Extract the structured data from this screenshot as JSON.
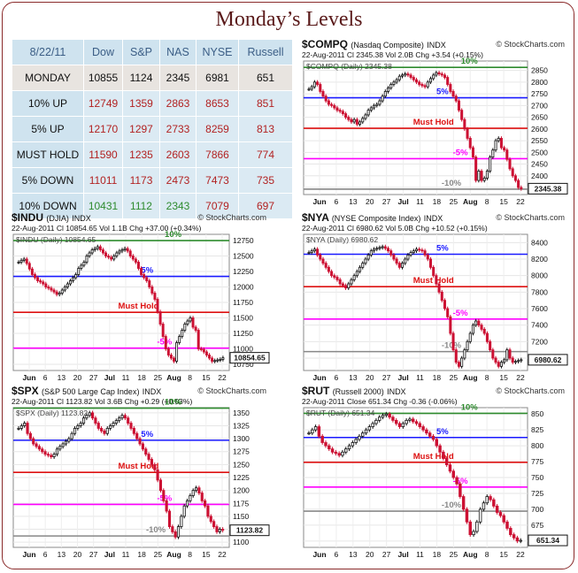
{
  "title": "Monday’s Levels",
  "table": {
    "headers": [
      "8/22/11",
      "Dow",
      "S&P",
      "NAS",
      "NYSE",
      "Russell"
    ],
    "rows": [
      {
        "label": "MONDAY",
        "values": [
          "10855",
          "1124",
          "2345",
          "6981",
          "651"
        ],
        "color": "#111111"
      },
      {
        "label": "10% UP",
        "values": [
          "12749",
          "1359",
          "2863",
          "8653",
          "851"
        ],
        "color": "#b22222"
      },
      {
        "label": "5% UP",
        "values": [
          "12170",
          "1297",
          "2733",
          "8259",
          "813"
        ],
        "color": "#b22222"
      },
      {
        "label": "MUST HOLD",
        "values": [
          "11590",
          "1235",
          "2603",
          "7866",
          "774"
        ],
        "color": "#b22222"
      },
      {
        "label": "5% DOWN",
        "values": [
          "11011",
          "1173",
          "2473",
          "7473",
          "735"
        ],
        "color": "#b22222"
      },
      {
        "label": "10% DOWN",
        "values": [
          "10431",
          "1112",
          "2343",
          "7079",
          "697"
        ],
        "colors": [
          "#2e8b2e",
          "#2e8b2e",
          "#2e8b2e",
          "#b22222",
          "#b22222"
        ]
      }
    ]
  },
  "chart_data": [
    {
      "id": "compq",
      "type": "bar",
      "symbol": "$COMPQ",
      "description": "(Nasdaq Composite)",
      "exchange": "INDX",
      "source": "© StockCharts.com",
      "stats": "22-Aug-2011   Cl 2345.38  Vol 2.0B  Chg +3.54 (+0.15%)",
      "overlay": "$COMPQ (Daily) 2345.38",
      "last_label": "2345.38",
      "ylim": [
        2320,
        2890
      ],
      "yticks": [
        2350,
        2400,
        2450,
        2500,
        2550,
        2600,
        2650,
        2700,
        2750,
        2800,
        2850
      ],
      "xticks": [
        "Jun",
        "6",
        "13",
        "20",
        "27",
        "Jul",
        "11",
        "18",
        "25",
        "Aug",
        "8",
        "15",
        "22"
      ],
      "levels": [
        {
          "label": "10%",
          "value": 2863,
          "color": "#2e8b2e"
        },
        {
          "label": "5%",
          "value": 2733,
          "color": "#1a1aff"
        },
        {
          "label": "Must Hold",
          "value": 2603,
          "color": "#dd1111"
        },
        {
          "label": "-5%",
          "value": 2473,
          "color": "#ff00ff"
        },
        {
          "label": "-10%",
          "value": 2343,
          "color": "#888888"
        }
      ],
      "closes": [
        2770,
        2780,
        2800,
        2790,
        2760,
        2740,
        2720,
        2705,
        2700,
        2690,
        2680,
        2675,
        2665,
        2650,
        2640,
        2630,
        2640,
        2620,
        2630,
        2645,
        2660,
        2680,
        2690,
        2700,
        2705,
        2720,
        2740,
        2760,
        2775,
        2790,
        2800,
        2810,
        2825,
        2830,
        2835,
        2830,
        2820,
        2810,
        2800,
        2790,
        2785,
        2780,
        2800,
        2815,
        2830,
        2840,
        2835,
        2830,
        2820,
        2790,
        2760,
        2740,
        2720,
        2680,
        2640,
        2600,
        2560,
        2520,
        2480,
        2380,
        2420,
        2380,
        2390,
        2420,
        2480,
        2510,
        2550,
        2560,
        2520,
        2510,
        2470,
        2430,
        2400,
        2380,
        2350,
        2345
      ]
    },
    {
      "id": "indu",
      "type": "bar",
      "symbol": "$INDU",
      "description": "(DJIA)",
      "exchange": "INDX",
      "source": "© StockCharts.com",
      "stats": "22-Aug-2011   Cl 10854.65  Vol 1.1B  Chg +37.00 (+0.34%)",
      "overlay": "$INDU (Daily) 10854.65",
      "last_label": "10854.65",
      "ylim": [
        10650,
        12850
      ],
      "yticks": [
        10750,
        11000,
        11250,
        11500,
        11750,
        12000,
        12250,
        12500,
        12750
      ],
      "xticks": [
        "Jun",
        "6",
        "13",
        "20",
        "27",
        "Jul",
        "11",
        "18",
        "25",
        "Aug",
        "8",
        "15",
        "22"
      ],
      "levels": [
        {
          "label": "10%",
          "value": 12749,
          "color": "#2e8b2e"
        },
        {
          "label": "5%",
          "value": 12170,
          "color": "#1a1aff"
        },
        {
          "label": "Must Hold",
          "value": 11590,
          "color": "#dd1111"
        },
        {
          "label": "-5%",
          "value": 11011,
          "color": "#ff00ff"
        },
        {
          "label": "-10%",
          "value": 10431,
          "color": "#888888"
        }
      ],
      "closes": [
        12400,
        12430,
        12450,
        12380,
        12290,
        12200,
        12150,
        12100,
        12080,
        12050,
        12000,
        11980,
        11950,
        11920,
        11880,
        11900,
        11950,
        12000,
        12050,
        12100,
        12150,
        12200,
        12300,
        12350,
        12400,
        12500,
        12550,
        12600,
        12620,
        12650,
        12600,
        12550,
        12500,
        12480,
        12450,
        12500,
        12550,
        12580,
        12600,
        12620,
        12580,
        12500,
        12450,
        12400,
        12300,
        12200,
        12150,
        12100,
        12000,
        11900,
        11800,
        11600,
        11400,
        11200,
        11000,
        10900,
        10850,
        10800,
        11100,
        11200,
        11300,
        11400,
        11450,
        11500,
        11350,
        11300,
        11000,
        10990,
        10950,
        10900,
        10850,
        10800,
        10810,
        10820,
        10830,
        10855
      ]
    },
    {
      "id": "nya",
      "type": "bar",
      "symbol": "$NYA",
      "description": "(NYSE Composite Index)",
      "exchange": "INDX",
      "source": "© StockCharts.com",
      "stats": "22-Aug-2011   Cl 6980.62  Vol 5.0B  Chg +10.52 (+0.15%)",
      "overlay": "$NYA (Daily) 6980.62",
      "last_label": "6980.62",
      "ylim": [
        6850,
        8500
      ],
      "yticks": [
        7000,
        7200,
        7400,
        7600,
        7800,
        8000,
        8200,
        8400
      ],
      "xticks": [
        "Jun",
        "6",
        "13",
        "20",
        "27",
        "Jul",
        "11",
        "18",
        "25",
        "Aug",
        "8",
        "15",
        "22"
      ],
      "levels": [
        {
          "label": "5%",
          "value": 8259,
          "color": "#1a1aff"
        },
        {
          "label": "Must Hold",
          "value": 7866,
          "color": "#dd1111"
        },
        {
          "label": "-5%",
          "value": 7473,
          "color": "#ff00ff"
        },
        {
          "label": "-10%",
          "value": 7079,
          "color": "#888888"
        }
      ],
      "closes": [
        8280,
        8300,
        8320,
        8250,
        8200,
        8150,
        8100,
        8050,
        8000,
        7980,
        7950,
        7900,
        7880,
        7850,
        7900,
        7950,
        8000,
        8050,
        8100,
        8150,
        8200,
        8250,
        8300,
        8320,
        8330,
        8340,
        8350,
        8330,
        8300,
        8250,
        8200,
        8150,
        8100,
        8150,
        8200,
        8250,
        8280,
        8300,
        8320,
        8310,
        8300,
        8250,
        8200,
        8100,
        8000,
        7900,
        7800,
        7700,
        7600,
        7500,
        7300,
        7100,
        6950,
        6900,
        7000,
        7100,
        7200,
        7300,
        7400,
        7450,
        7400,
        7350,
        7300,
        7200,
        7100,
        7000,
        6950,
        6900,
        6950,
        6980,
        7100,
        7000,
        6950,
        6960,
        6970,
        6980
      ]
    },
    {
      "id": "spx",
      "type": "bar",
      "symbol": "$SPX",
      "description": "(S&P 500 Large Cap Index)",
      "exchange": "INDX",
      "source": "© StockCharts.com",
      "stats": "22-Aug-2011   Cl 1123.82  Vol 3.6B  Chg +0.29 (+0.03%)",
      "overlay": "$SPX (Daily) 1123.82",
      "last_label": "1123.82",
      "ylim": [
        1090,
        1360
      ],
      "yticks": [
        1100,
        1125,
        1150,
        1175,
        1200,
        1225,
        1250,
        1275,
        1300,
        1325,
        1350
      ],
      "xticks": [
        "Jun",
        "6",
        "13",
        "20",
        "27",
        "Jul",
        "11",
        "18",
        "25",
        "Aug",
        "8",
        "15",
        "22"
      ],
      "levels": [
        {
          "label": "10%",
          "value": 1359,
          "color": "#2e8b2e"
        },
        {
          "label": "5%",
          "value": 1297,
          "color": "#1a1aff"
        },
        {
          "label": "Must Hold",
          "value": 1235,
          "color": "#dd1111"
        },
        {
          "label": "-5%",
          "value": 1173,
          "color": "#ff00ff"
        },
        {
          "label": "-10%",
          "value": 1112,
          "color": "#888888"
        }
      ],
      "closes": [
        1320,
        1325,
        1330,
        1310,
        1300,
        1290,
        1285,
        1280,
        1275,
        1270,
        1268,
        1265,
        1270,
        1280,
        1285,
        1290,
        1295,
        1300,
        1310,
        1320,
        1325,
        1330,
        1340,
        1345,
        1350,
        1340,
        1330,
        1320,
        1315,
        1310,
        1320,
        1325,
        1330,
        1335,
        1340,
        1345,
        1340,
        1330,
        1320,
        1310,
        1300,
        1290,
        1280,
        1270,
        1260,
        1250,
        1240,
        1220,
        1200,
        1180,
        1160,
        1130,
        1120,
        1110,
        1130,
        1150,
        1170,
        1180,
        1190,
        1200,
        1205,
        1195,
        1180,
        1170,
        1150,
        1140,
        1130,
        1120,
        1125,
        1123
      ]
    },
    {
      "id": "rut",
      "type": "bar",
      "symbol": "$RUT",
      "description": "(Russell 2000)",
      "exchange": "INDX",
      "source": "© StockCharts.com",
      "stats": "22-Aug-2011      Close 651.34  Chg -0.36 (-0.06%)",
      "overlay": "$RUT (Daily) 651.34",
      "last_label": "651.34",
      "ylim": [
        640,
        860
      ],
      "yticks": [
        650,
        675,
        700,
        725,
        750,
        775,
        800,
        825,
        850
      ],
      "xticks": [
        "Jun",
        "6",
        "13",
        "20",
        "27",
        "Jul",
        "11",
        "18",
        "25",
        "Aug",
        "8",
        "15",
        "22"
      ],
      "levels": [
        {
          "label": "10%",
          "value": 851,
          "color": "#2e8b2e"
        },
        {
          "label": "5%",
          "value": 813,
          "color": "#1a1aff"
        },
        {
          "label": "Must Hold",
          "value": 774,
          "color": "#dd1111"
        },
        {
          "label": "-5%",
          "value": 735,
          "color": "#ff00ff"
        },
        {
          "label": "-10%",
          "value": 697,
          "color": "#888888"
        }
      ],
      "closes": [
        820,
        825,
        830,
        815,
        805,
        800,
        795,
        790,
        788,
        785,
        790,
        795,
        800,
        805,
        810,
        815,
        820,
        825,
        830,
        835,
        840,
        845,
        848,
        850,
        845,
        840,
        835,
        830,
        835,
        840,
        842,
        838,
        835,
        830,
        825,
        820,
        815,
        810,
        800,
        790,
        780,
        770,
        760,
        750,
        740,
        720,
        700,
        680,
        660,
        665,
        680,
        700,
        710,
        720,
        715,
        705,
        695,
        690,
        680,
        670,
        660,
        655,
        650,
        651
      ]
    }
  ]
}
